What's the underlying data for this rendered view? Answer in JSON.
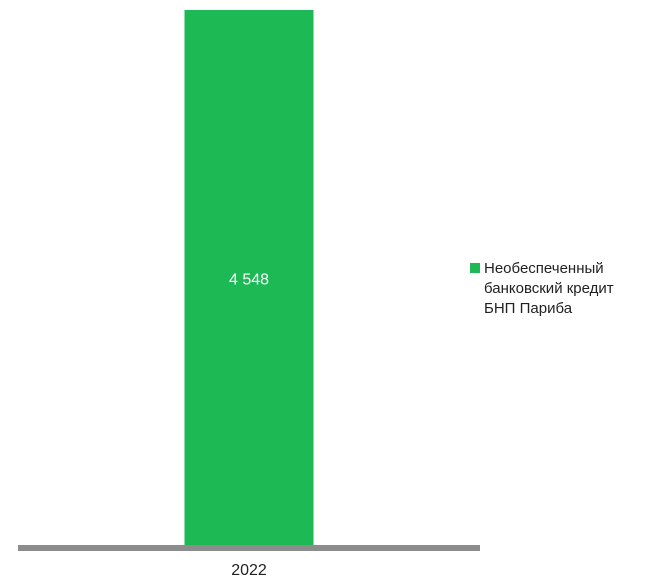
{
  "chart_data": {
    "type": "bar",
    "categories": [
      "2022"
    ],
    "series": [
      {
        "name": "Необеспеченный\nбанковский кредит\nБНП Париба",
        "values": [
          4548
        ],
        "value_labels": [
          "4 548"
        ]
      }
    ],
    "ylim": [
      0,
      4548
    ],
    "grid": false,
    "legend_position": "right",
    "colors": {
      "bar": "#1db954",
      "axis": "#8c8c8c",
      "value_label": "#ffffff",
      "tick_label": "#222222"
    }
  }
}
